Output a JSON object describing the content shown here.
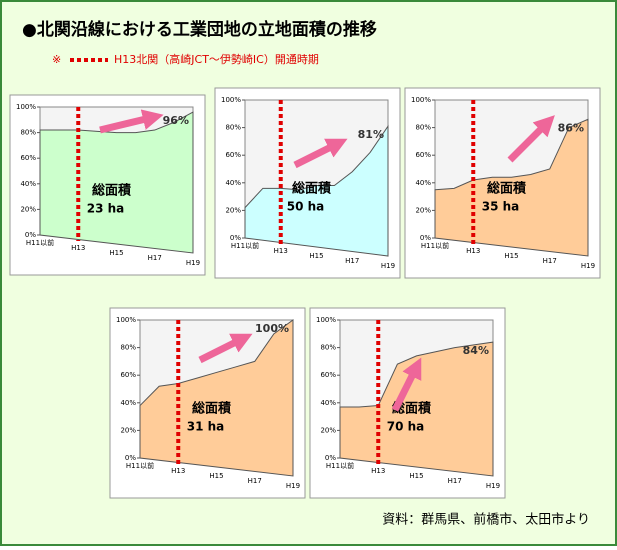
{
  "title": "●北関沿線における工業団地の立地面積の推移",
  "note": {
    "mark": "※",
    "text": "H13北関（高崎JCT～伊勢崎IC）開通時期"
  },
  "source": "資料：群馬県、前橋市、太田市より",
  "chart_data": [
    {
      "type": "area",
      "color": "#ccffcc",
      "categories": [
        "H11以前",
        null,
        "H13",
        null,
        "H15",
        null,
        "H17",
        null,
        "H19"
      ],
      "values": [
        82,
        82,
        82,
        81,
        80,
        80,
        82,
        88,
        96
      ],
      "value_labels": [
        null,
        null,
        null,
        null,
        null,
        null,
        null,
        null,
        "96%"
      ],
      "ylim": [
        0,
        100
      ],
      "yticks": [
        {
          "value": 0,
          "label": "0%"
        },
        {
          "value": 20,
          "label": "20%"
        },
        {
          "value": 40,
          "label": "40%"
        },
        {
          "value": 60,
          "label": "60%"
        },
        {
          "value": 80,
          "label": "80%"
        },
        {
          "value": 100,
          "label": "100%"
        }
      ],
      "annotation": {
        "label": "総面積",
        "area": "23 ha"
      }
    },
    {
      "type": "area",
      "color": "#ccffff",
      "categories": [
        "H11以前",
        null,
        "H13",
        null,
        "H15",
        null,
        "H17",
        null,
        "H19"
      ],
      "values": [
        22,
        36,
        36,
        35,
        38,
        38,
        48,
        62,
        81
      ],
      "value_labels": [
        null,
        null,
        null,
        null,
        null,
        null,
        null,
        null,
        "81%"
      ],
      "ylim": [
        0,
        100
      ],
      "yticks": [
        {
          "value": 0,
          "label": "0%"
        },
        {
          "value": 20,
          "label": "20%"
        },
        {
          "value": 40,
          "label": "40%"
        },
        {
          "value": 60,
          "label": "60%"
        },
        {
          "value": 80,
          "label": "80%"
        },
        {
          "value": 100,
          "label": "100%"
        }
      ],
      "annotation": {
        "label": "総面積",
        "area": "50 ha"
      }
    },
    {
      "type": "area",
      "color": "#ffcc99",
      "categories": [
        "H11以前",
        null,
        "H13",
        null,
        "H15",
        null,
        "H17",
        null,
        "H19"
      ],
      "values": [
        35,
        36,
        42,
        44,
        44,
        46,
        50,
        80,
        86
      ],
      "value_labels": [
        null,
        null,
        null,
        null,
        null,
        null,
        null,
        null,
        "86%"
      ],
      "ylim": [
        0,
        100
      ],
      "yticks": [
        {
          "value": 0,
          "label": "0%"
        },
        {
          "value": 20,
          "label": "20%"
        },
        {
          "value": 40,
          "label": "40%"
        },
        {
          "value": 60,
          "label": "60%"
        },
        {
          "value": 80,
          "label": "80%"
        },
        {
          "value": 100,
          "label": "100%"
        }
      ],
      "annotation": {
        "label": "総面積",
        "area": "35 ha"
      }
    },
    {
      "type": "area",
      "color": "#ffcc99",
      "categories": [
        "H11以前",
        null,
        "H13",
        null,
        "H15",
        null,
        "H17",
        null,
        "H19"
      ],
      "values": [
        38,
        52,
        54,
        58,
        62,
        66,
        70,
        90,
        100
      ],
      "value_labels": [
        null,
        null,
        null,
        null,
        null,
        null,
        null,
        null,
        "100%"
      ],
      "ylim": [
        0,
        100
      ],
      "yticks": [
        {
          "value": 0,
          "label": "0%"
        },
        {
          "value": 20,
          "label": "20%"
        },
        {
          "value": 40,
          "label": "40%"
        },
        {
          "value": 60,
          "label": "60%"
        },
        {
          "value": 80,
          "label": "80%"
        },
        {
          "value": 100,
          "label": "100%"
        }
      ],
      "annotation": {
        "label": "総面積",
        "area": "31 ha"
      }
    },
    {
      "type": "area",
      "color": "#ffcc99",
      "categories": [
        "H11以前",
        null,
        "H13",
        null,
        "H15",
        null,
        "H17",
        null,
        "H19"
      ],
      "values": [
        37,
        37,
        38,
        68,
        74,
        77,
        80,
        82,
        84
      ],
      "value_labels": [
        null,
        null,
        null,
        null,
        null,
        null,
        null,
        null,
        "84%"
      ],
      "ylim": [
        0,
        100
      ],
      "yticks": [
        {
          "value": 0,
          "label": "0%"
        },
        {
          "value": 20,
          "label": "20%"
        },
        {
          "value": 40,
          "label": "40%"
        },
        {
          "value": 60,
          "label": "60%"
        },
        {
          "value": 80,
          "label": "80%"
        },
        {
          "value": 100,
          "label": "100%"
        }
      ],
      "annotation": {
        "label": "総面積",
        "area": "70 ha"
      }
    }
  ]
}
